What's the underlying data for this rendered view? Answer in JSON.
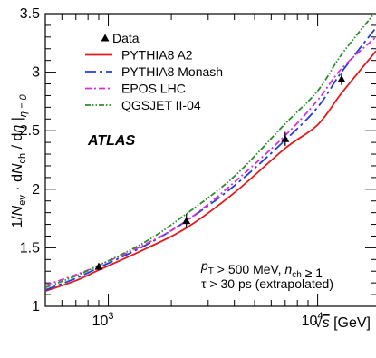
{
  "chart_data": {
    "type": "line",
    "xscale": "log",
    "xlim": [
      500,
      19000
    ],
    "ylim": [
      1,
      3.5
    ],
    "xlabel": "√s [GeV]",
    "ylabel": "1/N_ev · dN_ch / dη |_η=0",
    "x_ticks": [
      {
        "value": 1000,
        "base": "10",
        "exp": "3"
      },
      {
        "value": 10000,
        "base": "10",
        "exp": "4"
      }
    ],
    "y_ticks": [
      {
        "value": 1,
        "label": "1"
      },
      {
        "value": 1.5,
        "label": "1.5"
      },
      {
        "value": 2,
        "label": "2"
      },
      {
        "value": 2.5,
        "label": "2.5"
      },
      {
        "value": 3,
        "label": "3"
      },
      {
        "value": 3.5,
        "label": "3.5"
      }
    ],
    "experiment_label": "ATLAS",
    "annotation": {
      "line1": "p_T > 500 MeV, n_ch ≥ 1",
      "line2": "τ > 30 ps (extrapolated)"
    },
    "data_points": {
      "name": "Data",
      "color": "#000000",
      "points": [
        {
          "x": 900,
          "y": 1.34,
          "err": 0.03
        },
        {
          "x": 2360,
          "y": 1.73,
          "err": 0.06
        },
        {
          "x": 7000,
          "y": 2.43,
          "err": 0.06
        },
        {
          "x": 13000,
          "y": 2.94,
          "err": 0.05
        }
      ]
    },
    "series": [
      {
        "name": "PYTHIA8 A2",
        "color": "#e31a1c",
        "dash": "solid",
        "points": [
          [
            500,
            1.13
          ],
          [
            700,
            1.22
          ],
          [
            900,
            1.31
          ],
          [
            1500,
            1.49
          ],
          [
            2360,
            1.67
          ],
          [
            4000,
            1.97
          ],
          [
            7000,
            2.35
          ],
          [
            10000,
            2.55
          ],
          [
            13000,
            2.82
          ],
          [
            19000,
            3.18
          ]
        ]
      },
      {
        "name": "PYTHIA8 Monash",
        "color": "#1f3fd6",
        "dash": "longdash",
        "points": [
          [
            500,
            1.14
          ],
          [
            700,
            1.24
          ],
          [
            900,
            1.33
          ],
          [
            1500,
            1.52
          ],
          [
            2360,
            1.73
          ],
          [
            4000,
            2.03
          ],
          [
            7000,
            2.42
          ],
          [
            10000,
            2.7
          ],
          [
            13000,
            3.0
          ],
          [
            19000,
            3.38
          ]
        ]
      },
      {
        "name": "EPOS LHC",
        "color": "#d630d6",
        "dash": "dashdot",
        "points": [
          [
            500,
            1.18
          ],
          [
            700,
            1.27
          ],
          [
            900,
            1.35
          ],
          [
            1500,
            1.53
          ],
          [
            2360,
            1.73
          ],
          [
            4000,
            2.06
          ],
          [
            7000,
            2.46
          ],
          [
            10000,
            2.76
          ],
          [
            13000,
            3.03
          ],
          [
            19000,
            3.3
          ]
        ]
      },
      {
        "name": "QGSJET II-04",
        "color": "#2e8b2e",
        "dash": "dashdotdot",
        "points": [
          [
            500,
            1.16
          ],
          [
            700,
            1.26
          ],
          [
            900,
            1.35
          ],
          [
            1500,
            1.55
          ],
          [
            2360,
            1.79
          ],
          [
            4000,
            2.11
          ],
          [
            7000,
            2.56
          ],
          [
            10000,
            2.84
          ],
          [
            13000,
            3.15
          ],
          [
            19000,
            3.52
          ]
        ]
      }
    ]
  }
}
